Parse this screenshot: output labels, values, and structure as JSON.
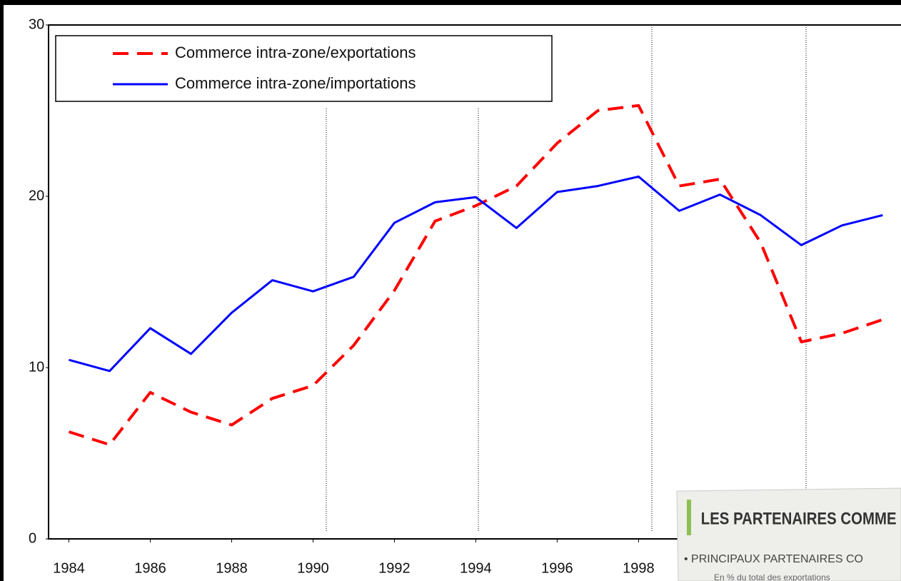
{
  "chart_data": {
    "type": "line",
    "x": [
      1984,
      1985,
      1986,
      1987,
      1988,
      1989,
      1990,
      1991,
      1992,
      1993,
      1994,
      1995,
      1996,
      1997,
      1998,
      1999,
      2000,
      2001,
      2002,
      2003,
      2004
    ],
    "series": [
      {
        "name": "Commerce intra-zone/exportations",
        "color": "#ff0000",
        "dashed": true,
        "values": [
          6.25,
          5.5,
          8.55,
          7.4,
          6.65,
          8.2,
          8.95,
          11.3,
          14.5,
          18.55,
          19.45,
          20.6,
          23.1,
          25.0,
          25.3,
          20.6,
          21.0,
          17.3,
          11.5,
          12.0,
          12.8
        ]
      },
      {
        "name": "Commerce intra-zone/importations",
        "color": "#0000ff",
        "dashed": false,
        "values": [
          10.45,
          9.8,
          12.3,
          10.8,
          13.2,
          15.1,
          14.45,
          15.3,
          18.45,
          19.65,
          19.95,
          18.15,
          20.25,
          20.6,
          21.15,
          19.15,
          20.1,
          18.9,
          17.15,
          18.3,
          18.9
        ]
      }
    ],
    "xlim": [
      1983.5,
      2004.45
    ],
    "xticks": [
      1984,
      1986,
      1988,
      1990,
      1992,
      1994,
      1996,
      1998
    ],
    "ylim": [
      0,
      30
    ],
    "yticks": [
      0,
      10,
      20,
      30
    ],
    "legend": "upper left"
  },
  "inset": {
    "title": "LES PARTENAIRES COMME",
    "subtitle": "• PRINCIPAUX PARTENAIRES CO",
    "note": "En % du total des exportations"
  }
}
